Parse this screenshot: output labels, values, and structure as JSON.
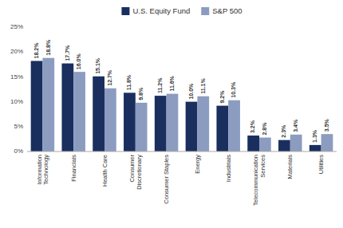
{
  "chart_data": {
    "type": "bar",
    "categories": [
      "Information\nTechnology",
      "Financials",
      "Health Care",
      "Consumer\nDiscretionary",
      "Consumer Staples",
      "Energy",
      "Industrials",
      "Telecommunication\nServices",
      "Materials",
      "Utilities"
    ],
    "series": [
      {
        "name": "U.S. Equity Fund",
        "color": "#1a2f5e",
        "values": [
          18.2,
          17.7,
          15.1,
          11.8,
          11.2,
          10.0,
          9.2,
          3.2,
          2.3,
          1.3
        ],
        "value_labels": [
          "18.2%",
          "17.7%",
          "15.1%",
          "11.8%",
          "11.2%",
          "10.0%",
          "9.2%",
          "3.2%",
          "2.3%",
          "1.3%"
        ]
      },
      {
        "name": "S&P 500",
        "color": "#8c9cc0",
        "values": [
          18.8,
          16.0,
          12.7,
          9.8,
          11.6,
          11.1,
          10.3,
          2.8,
          3.4,
          3.5
        ],
        "value_labels": [
          "18.8%",
          "16.0%",
          "12.7%",
          "9.8%",
          "11.6%",
          "11.1%",
          "10.3%",
          "2.8%",
          "3.4%",
          "3.5%"
        ]
      }
    ],
    "ylim": [
      0,
      25
    ],
    "yticks": [
      {
        "value": 0,
        "label": "0%"
      },
      {
        "value": 5,
        "label": "5%"
      },
      {
        "value": 10,
        "label": "10%"
      },
      {
        "value": 15,
        "label": "15%"
      },
      {
        "value": 20,
        "label": "20%"
      },
      {
        "value": 25,
        "label": "25%"
      }
    ],
    "data_labels": true,
    "legend": "top",
    "grid": false
  }
}
